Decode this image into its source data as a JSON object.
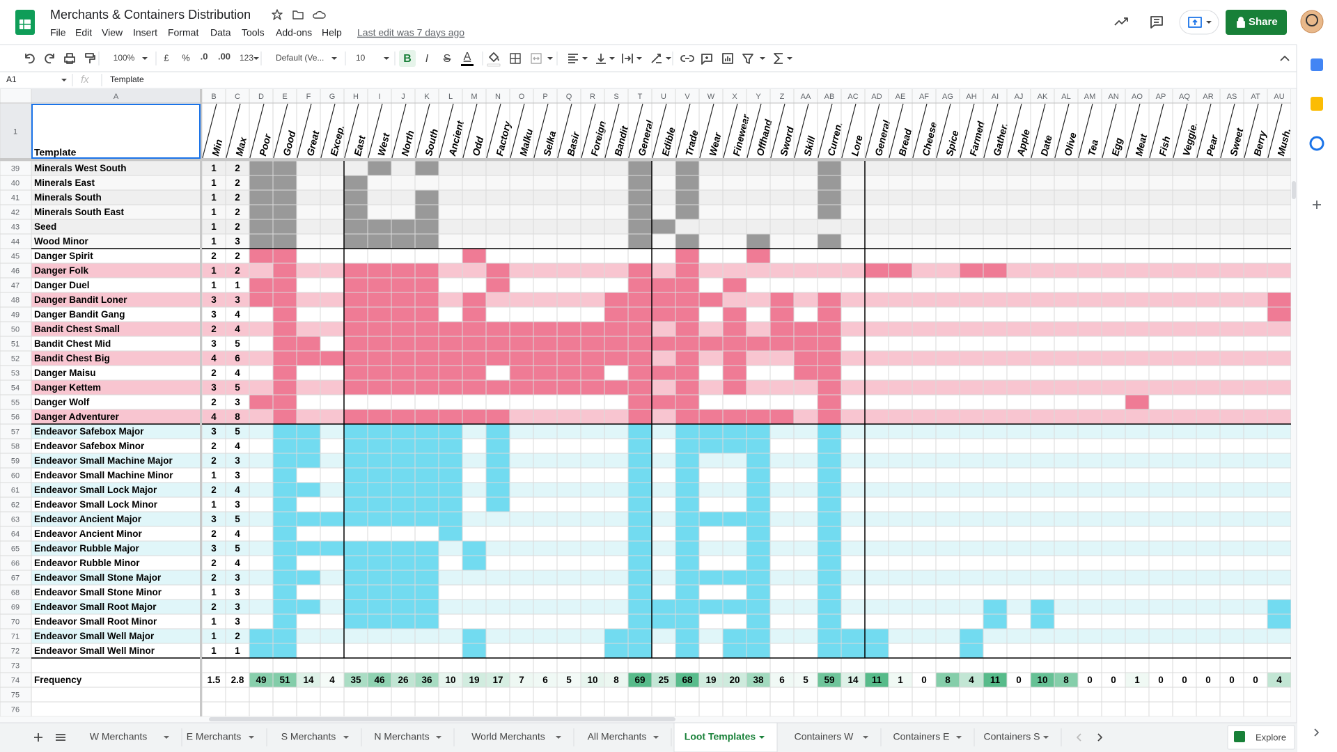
{
  "app": {
    "title": "Merchants & Containers Distribution",
    "menu": [
      "File",
      "Edit",
      "View",
      "Insert",
      "Format",
      "Data",
      "Tools",
      "Add-ons",
      "Help"
    ],
    "last_edit": "Last edit was 7 days ago",
    "share": "Share"
  },
  "toolbar": {
    "zoom": "100%",
    "currency": "£",
    "percent": "%",
    "decrease_decimal": ".0",
    "increase_decimal": ".00",
    "more_formats": "123",
    "font": "Default (Ve...",
    "font_size": "10",
    "bold": "B",
    "italic": "I",
    "strike": "S",
    "text_color": "A"
  },
  "formula_bar": {
    "name_box": "A1",
    "fx": "fx",
    "content": "Template"
  },
  "sheet": {
    "column_letters": [
      "A",
      "B",
      "C",
      "D",
      "E",
      "F",
      "G",
      "H",
      "I",
      "J",
      "K",
      "L",
      "M",
      "N",
      "O",
      "P",
      "Q",
      "R",
      "S",
      "T",
      "U",
      "V",
      "W",
      "X",
      "Y",
      "Z",
      "AA",
      "AB",
      "AC",
      "AD",
      "AE",
      "AF",
      "AG",
      "AH",
      "AI",
      "AJ",
      "AK",
      "AL",
      "AM",
      "AN",
      "AO",
      "AP",
      "AQ",
      "AR",
      "AS",
      "AT",
      "AU"
    ],
    "header_row": 1,
    "headers": [
      "Template",
      "Min",
      "Max",
      "Poor",
      "Good",
      "Great",
      "Excep.",
      "East",
      "West",
      "North",
      "South",
      "Ancient",
      "Odd",
      "Factory",
      "Malku",
      "Selka",
      "Basir",
      "Foreign",
      "Bandit",
      "General",
      "Edible",
      "Trade",
      "Wear",
      "Finewear",
      "Offhand",
      "Sword",
      "Skill",
      "Curren.",
      "Lore",
      "General",
      "Bread",
      "Cheese",
      "Spice",
      "Farmed",
      "Gather.",
      "Apple",
      "Date",
      "Olive",
      "Tea",
      "Egg",
      "Meat",
      "Fish",
      "Veggie.",
      "Pear",
      "Sweet",
      "Berry",
      "Mush."
    ],
    "rows": [
      {
        "row": 39,
        "template": "Minerals West South",
        "min": 1,
        "max": 2
      },
      {
        "row": 40,
        "template": "Minerals East",
        "min": 1,
        "max": 2
      },
      {
        "row": 41,
        "template": "Minerals South",
        "min": 1,
        "max": 2
      },
      {
        "row": 42,
        "template": "Minerals South East",
        "min": 1,
        "max": 2
      },
      {
        "row": 43,
        "template": "Seed",
        "min": 1,
        "max": 2
      },
      {
        "row": 44,
        "template": "Wood Minor",
        "min": 1,
        "max": 3
      },
      {
        "row": 45,
        "template": "Danger Spirit",
        "min": 2,
        "max": 2
      },
      {
        "row": 46,
        "template": "Danger Folk",
        "min": 1,
        "max": 2
      },
      {
        "row": 47,
        "template": "Danger Duel",
        "min": 1,
        "max": 1
      },
      {
        "row": 48,
        "template": "Danger Bandit Loner",
        "min": 3,
        "max": 3
      },
      {
        "row": 49,
        "template": "Danger Bandit Gang",
        "min": 3,
        "max": 4
      },
      {
        "row": 50,
        "template": "Bandit Chest Small",
        "min": 2,
        "max": 4
      },
      {
        "row": 51,
        "template": "Bandit Chest Mid",
        "min": 3,
        "max": 5
      },
      {
        "row": 52,
        "template": "Bandit Chest Big",
        "min": 4,
        "max": 6
      },
      {
        "row": 53,
        "template": "Danger Maisu",
        "min": 2,
        "max": 4
      },
      {
        "row": 54,
        "template": "Danger Kettem",
        "min": 3,
        "max": 5
      },
      {
        "row": 55,
        "template": "Danger Wolf",
        "min": 2,
        "max": 3
      },
      {
        "row": 56,
        "template": "Danger Adventurer",
        "min": 4,
        "max": 8
      },
      {
        "row": 57,
        "template": "Endeavor Safebox Major",
        "min": 3,
        "max": 5
      },
      {
        "row": 58,
        "template": "Endeavor Safebox Minor",
        "min": 2,
        "max": 4
      },
      {
        "row": 59,
        "template": "Endeavor Small Machine Major",
        "min": 2,
        "max": 3
      },
      {
        "row": 60,
        "template": "Endeavor Small Machine Minor",
        "min": 1,
        "max": 3
      },
      {
        "row": 61,
        "template": "Endeavor Small Lock Major",
        "min": 2,
        "max": 4
      },
      {
        "row": 62,
        "template": "Endeavor Small Lock Minor",
        "min": 1,
        "max": 3
      },
      {
        "row": 63,
        "template": "Endeavor Ancient Major",
        "min": 3,
        "max": 5
      },
      {
        "row": 64,
        "template": "Endeavor Ancient Minor",
        "min": 2,
        "max": 4
      },
      {
        "row": 65,
        "template": "Endeavor Rubble Major",
        "min": 3,
        "max": 5
      },
      {
        "row": 66,
        "template": "Endeavor Rubble Minor",
        "min": 2,
        "max": 4
      },
      {
        "row": 67,
        "template": "Endeavor Small Stone Major",
        "min": 2,
        "max": 3
      },
      {
        "row": 68,
        "template": "Endeavor Small Stone Minor",
        "min": 1,
        "max": 3
      },
      {
        "row": 69,
        "template": "Endeavor Small Root Major",
        "min": 2,
        "max": 3
      },
      {
        "row": 70,
        "template": "Endeavor Small Root Minor",
        "min": 1,
        "max": 3
      },
      {
        "row": 71,
        "template": "Endeavor Small Well Major",
        "min": 1,
        "max": 2
      },
      {
        "row": 72,
        "template": "Endeavor Small Well Minor",
        "min": 1,
        "max": 1
      }
    ],
    "blank_row": 73,
    "frequency": {
      "row": 74,
      "label": "Frequency",
      "values": [
        1.5,
        2.8,
        49,
        51,
        14,
        4,
        35,
        46,
        26,
        36,
        10,
        19,
        17,
        7,
        6,
        5,
        10,
        8,
        69,
        25,
        68,
        19,
        20,
        38,
        6,
        5,
        59,
        14,
        11,
        1,
        0,
        8,
        4,
        11,
        0,
        10,
        8,
        0,
        0,
        1,
        0,
        0,
        0,
        0,
        0,
        4
      ]
    },
    "trailing_rows": [
      75,
      76
    ]
  },
  "tabs": [
    "W Merchants",
    "E Merchants",
    "S Merchants",
    "N Merchants",
    "World Merchants",
    "All Merchants",
    "Loot Templates",
    "Containers W",
    "Containers E",
    "Containers S"
  ],
  "active_tab": 6,
  "explore": "Explore"
}
